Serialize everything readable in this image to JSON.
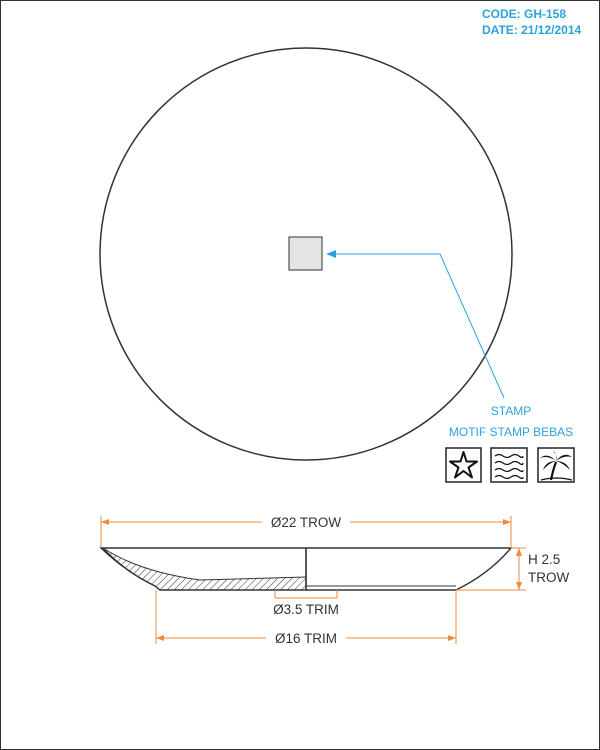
{
  "header": {
    "code": "CODE: GH-158",
    "date": "DATE: 21/12/2014"
  },
  "callout": {
    "title": "STAMP",
    "subtitle": "MOTIF STAMP BEBAS",
    "motifs": [
      "starfish-icon",
      "waves-icon",
      "palm-tree-icon"
    ]
  },
  "dimensions": {
    "outer_diameter": "Ø22 TROW",
    "height_line1": "H 2.5",
    "height_line2": "TROW",
    "trim_small": "Ø3.5 TRIM",
    "trim_base": "Ø16 TRIM"
  },
  "colors": {
    "accent_blue": "#2aa3dc",
    "dimension_orange": "#f08a3c",
    "outline": "#333333",
    "stamp_fill": "#e4e4e4"
  }
}
